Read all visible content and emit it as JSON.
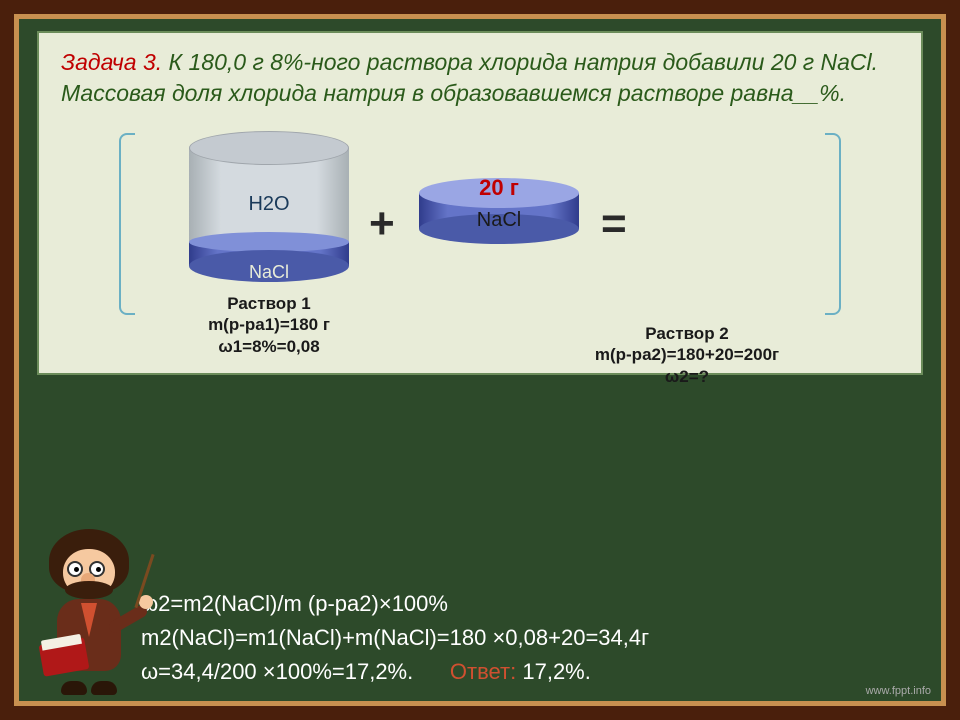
{
  "problem": {
    "title": "Задача 3.",
    "text": " К 180,0 г 8%-ного раствора хлорида натрия добавили 20 г NaCl. Массовая доля хлорида натрия в образовавшемся растворе равна__%."
  },
  "diagram": {
    "beaker": {
      "top_label": "H2O",
      "bottom_label": "NaCl"
    },
    "added": {
      "mass": "20 г",
      "substance": "NaCl"
    },
    "solution1": {
      "heading": "Раствор 1",
      "mass": "m(р-ра1)=180 г",
      "omega": "ω1=8%=0,08"
    },
    "solution2": {
      "heading": "Раствор 2",
      "mass": "m(р-ра2)=180+20=200г",
      "omega": "ω2=?"
    },
    "colors": {
      "liquid_light": "#d4dadf",
      "liquid_dark": "#a8b0b4",
      "nacl_band": "#6474c8",
      "nacl_edge": "#303c8c",
      "bracket": "#6bb0c4"
    }
  },
  "calculations": {
    "line1": "ω2=m2(NaCl)/m (р-ра2)×100%",
    "line2": "m2(NaCl)=m1(NaCl)+m(NaCl)=180 ×0,08+20=34,4г",
    "line3a": "ω=34,4/200 ×100%=17,2%.",
    "answer_label": "Ответ:",
    "answer_value": " 17,2%."
  },
  "watermark": "www.fppt.info",
  "style": {
    "frame_outer": "#4a1f0c",
    "frame_mid": "#c89050",
    "board": "#2d4a2a",
    "panel_bg": "#e8ecd8",
    "panel_border": "#6b8c5a",
    "title_color": "#c00000",
    "text_color": "#2a5a1a",
    "answer_color": "#d05030",
    "font_problem": 23,
    "font_calc": 22,
    "font_caption": 17
  }
}
